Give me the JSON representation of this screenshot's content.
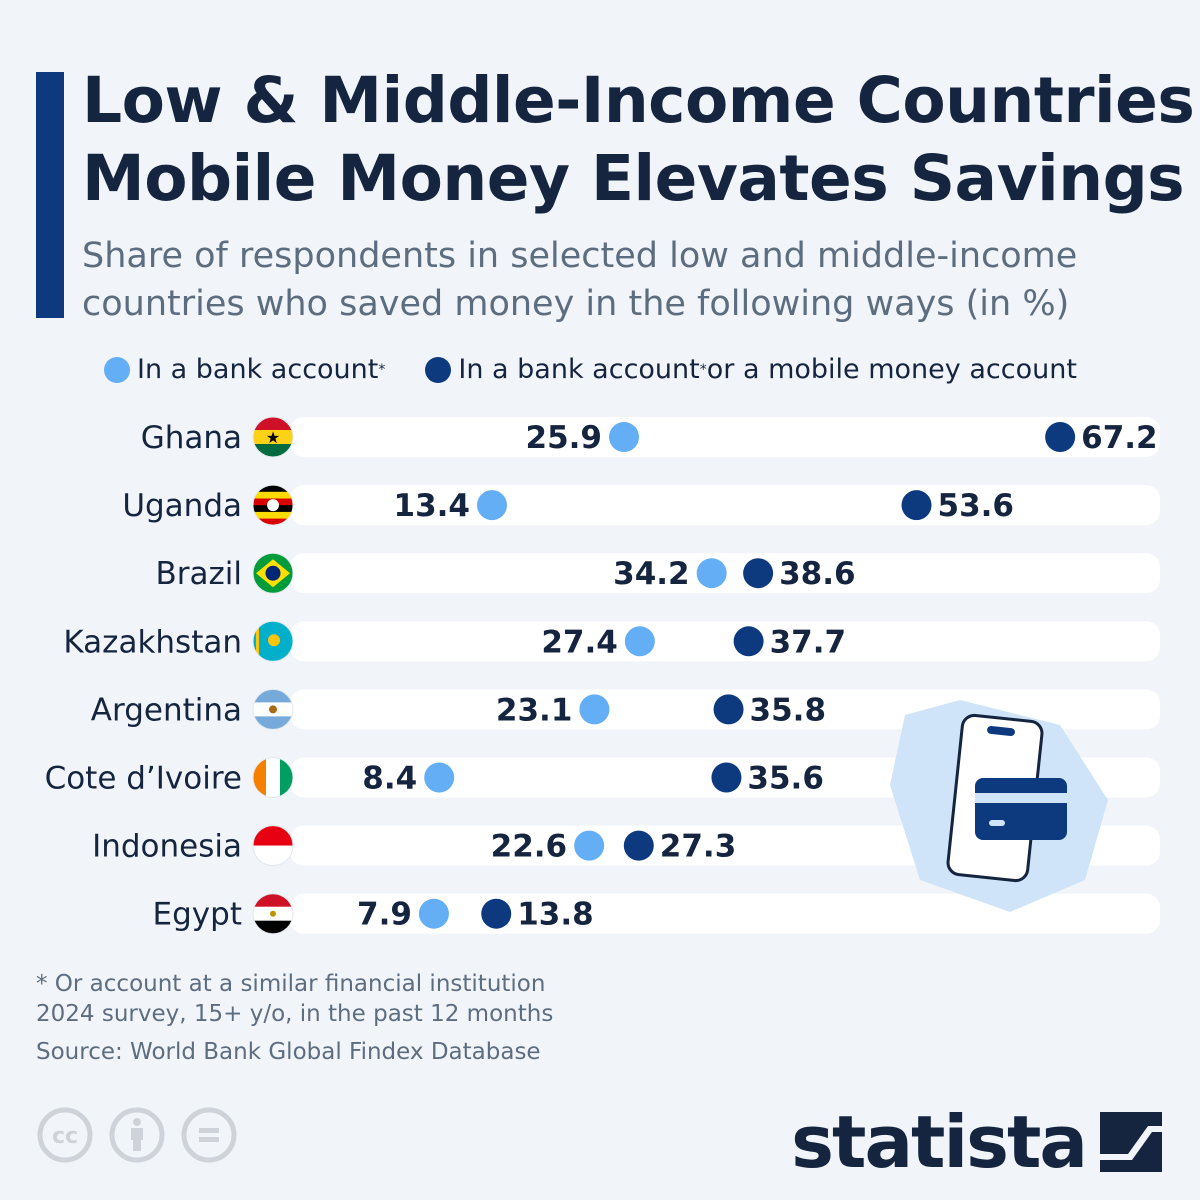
{
  "title_lines": [
    "Low & Middle-Income Countries:",
    "Mobile Money Elevates Savings"
  ],
  "subtitle_lines": [
    "Share of respondents in selected low and middle-income",
    "countries who saved money in the following ways (in %)"
  ],
  "colors": {
    "bank": "#64aef5",
    "bank_or_mobile": "#0d3a7e",
    "accent": "#0d3a7e",
    "text": "#15243f"
  },
  "chart_data": {
    "type": "dot",
    "legend_position": "top",
    "series": [
      {
        "name": "In a bank account*",
        "values": [
          25.9,
          13.4,
          34.2,
          27.4,
          23.1,
          8.4,
          22.6,
          7.9
        ]
      },
      {
        "name": "In a bank account* or a mobile money account",
        "values": [
          67.2,
          53.6,
          38.6,
          37.7,
          35.8,
          35.6,
          27.3,
          13.8
        ]
      }
    ],
    "categories": [
      "Ghana",
      "Uganda",
      "Brazil",
      "Kazakhstan",
      "Argentina",
      "Cote d’Ivoire",
      "Indonesia",
      "Egypt"
    ],
    "grid": false
  },
  "legend": {
    "bank": "In a bank account",
    "bank_or_mobile_a": "In a bank account",
    "bank_or_mobile_b": " or a mobile money account",
    "star": "*"
  },
  "footnotes": [
    "* Or account at a similar financial institution",
    "2024 survey, 15+ y/o, in the past 12 months",
    "Source: World Bank Global Findex Database"
  ],
  "brand": "statista",
  "icons": [
    "phone-with-card-icon",
    "cc-icon",
    "attribution-icon",
    "no-derivatives-icon",
    "statista-logo-icon"
  ]
}
